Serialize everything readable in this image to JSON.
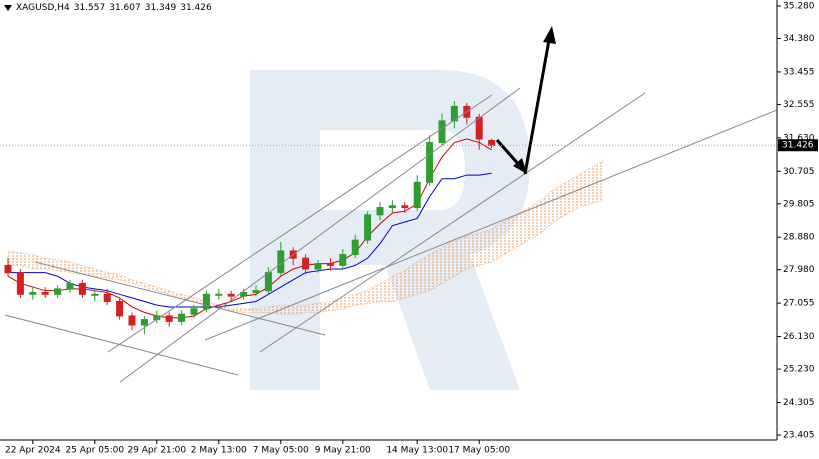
{
  "chart_data": {
    "type": "candlestick",
    "title": "XAGUSD,H4",
    "categories": [
      null,
      null,
      "22 Apr 2024",
      null,
      null,
      null,
      null,
      "25 Apr 05:00",
      null,
      null,
      null,
      null,
      "29 Apr 21:00",
      null,
      null,
      null,
      null,
      "2 May 13:00",
      null,
      null,
      null,
      null,
      "7 May 05:00",
      null,
      null,
      null,
      null,
      "9 May 21:00",
      null,
      null,
      null,
      null,
      null,
      "14 May 13:00",
      null,
      null,
      null,
      null,
      "17 May 05:00",
      null
    ],
    "open": [
      28.1,
      27.9,
      27.3,
      27.35,
      27.3,
      27.45,
      27.6,
      27.3,
      27.3,
      27.1,
      26.7,
      26.45,
      26.6,
      26.7,
      26.55,
      26.75,
      26.9,
      27.3,
      27.3,
      27.25,
      27.35,
      27.4,
      27.9,
      28.5,
      28.3,
      28.0,
      28.15,
      28.1,
      28.4,
      28.8,
      29.5,
      29.7,
      29.75,
      29.7,
      30.4,
      31.5,
      32.1,
      32.5,
      32.2,
      31.557
    ],
    "high": [
      28.3,
      28.0,
      27.5,
      27.5,
      27.55,
      27.7,
      27.7,
      27.45,
      27.45,
      27.2,
      26.8,
      26.7,
      26.85,
      26.8,
      26.85,
      27.0,
      27.4,
      27.45,
      27.4,
      27.45,
      27.55,
      28.05,
      28.75,
      28.6,
      28.4,
      28.25,
      28.3,
      28.55,
      28.95,
      29.6,
      29.85,
      29.9,
      29.85,
      30.6,
      31.7,
      32.3,
      32.65,
      32.6,
      32.3,
      31.607
    ],
    "low": [
      27.8,
      27.2,
      27.15,
      27.2,
      27.2,
      27.35,
      27.2,
      27.1,
      27.0,
      26.6,
      26.3,
      26.2,
      26.5,
      26.4,
      26.45,
      26.65,
      26.8,
      27.15,
      27.1,
      27.15,
      27.25,
      27.3,
      27.8,
      28.1,
      27.85,
      27.9,
      27.95,
      28.0,
      28.3,
      28.7,
      29.35,
      29.55,
      29.55,
      29.6,
      30.3,
      31.4,
      31.9,
      32.0,
      31.3,
      31.349
    ],
    "close": [
      27.9,
      27.3,
      27.35,
      27.3,
      27.45,
      27.6,
      27.3,
      27.3,
      27.1,
      26.7,
      26.45,
      26.6,
      26.7,
      26.55,
      26.75,
      26.9,
      27.3,
      27.3,
      27.25,
      27.35,
      27.4,
      27.9,
      28.5,
      28.3,
      28.0,
      28.15,
      28.1,
      28.4,
      28.8,
      29.5,
      29.7,
      29.75,
      29.7,
      30.4,
      31.5,
      32.1,
      32.5,
      32.2,
      31.6,
      31.426
    ],
    "up_color": "#2e9e2e",
    "down_color": "#d42020",
    "series": [
      {
        "color": "#d40000",
        "values": [
          27.8,
          27.6,
          27.5,
          27.4,
          27.4,
          27.45,
          27.45,
          27.4,
          27.35,
          27.2,
          26.95,
          26.8,
          26.7,
          26.65,
          26.65,
          26.7,
          26.9,
          27.0,
          27.1,
          27.25,
          27.3,
          27.5,
          27.8,
          28.0,
          28.1,
          28.15,
          28.15,
          28.25,
          28.45,
          28.9,
          29.25,
          29.55,
          29.6,
          29.8,
          30.5,
          31.1,
          31.5,
          31.6,
          31.5,
          31.3
        ]
      },
      {
        "color": "#0000d4",
        "values": [
          27.9,
          27.9,
          27.9,
          27.9,
          27.8,
          27.6,
          27.5,
          27.45,
          27.4,
          27.3,
          27.2,
          27.1,
          27.0,
          26.95,
          26.95,
          26.95,
          26.95,
          26.95,
          27.0,
          27.05,
          27.1,
          27.3,
          27.5,
          27.7,
          27.9,
          27.95,
          28.0,
          28.0,
          28.1,
          28.3,
          28.7,
          29.2,
          29.3,
          29.4,
          30.0,
          30.5,
          30.5,
          30.6,
          30.6,
          30.65
        ]
      }
    ],
    "cloud": {
      "color": "#f0a060",
      "span_a": [
        28.5,
        28.45,
        28.4,
        28.3,
        28.25,
        28.2,
        28.1,
        28.0,
        27.9,
        27.85,
        27.7,
        27.6,
        27.5,
        27.4,
        27.3,
        27.2,
        27.1,
        27.0,
        26.9,
        26.9,
        26.9,
        26.95,
        27.0,
        27.0,
        27.0,
        27.05,
        27.1,
        27.2,
        27.3,
        27.4,
        27.6,
        27.8,
        27.95,
        28.2,
        28.4,
        28.6,
        28.8,
        28.9,
        29.0,
        29.1,
        29.3,
        29.5,
        29.7,
        29.9,
        30.2,
        30.4,
        30.6,
        30.8,
        31.0
      ],
      "span_b": [
        28.1,
        28.1,
        28.0,
        28.0,
        27.95,
        27.9,
        27.85,
        27.8,
        27.75,
        27.7,
        27.6,
        27.5,
        27.4,
        27.3,
        27.2,
        27.1,
        27.0,
        26.95,
        26.85,
        26.8,
        26.8,
        26.8,
        26.75,
        26.75,
        26.8,
        26.8,
        26.85,
        26.9,
        27.0,
        27.05,
        27.1,
        27.1,
        27.2,
        27.3,
        27.4,
        27.6,
        27.8,
        28.0,
        28.1,
        28.2,
        28.4,
        28.6,
        28.8,
        29.0,
        29.3,
        29.5,
        29.7,
        29.8,
        29.9
      ]
    },
    "ylim": [
      23.267,
      35.446
    ],
    "yticks": [
      {
        "value": 35.28,
        "label": "35.280"
      },
      {
        "value": 34.38,
        "label": "34.380"
      },
      33.455,
      32.555,
      {
        "value": 31.63,
        "label": "31.630"
      },
      30.705,
      29.805,
      {
        "value": 28.88,
        "label": "28.880"
      },
      {
        "value": 27.98,
        "label": "27.980"
      },
      27.055,
      {
        "value": 26.13,
        "label": "26.130"
      },
      {
        "value": 25.23,
        "label": "25.230"
      },
      24.305,
      23.405
    ]
  }
}
